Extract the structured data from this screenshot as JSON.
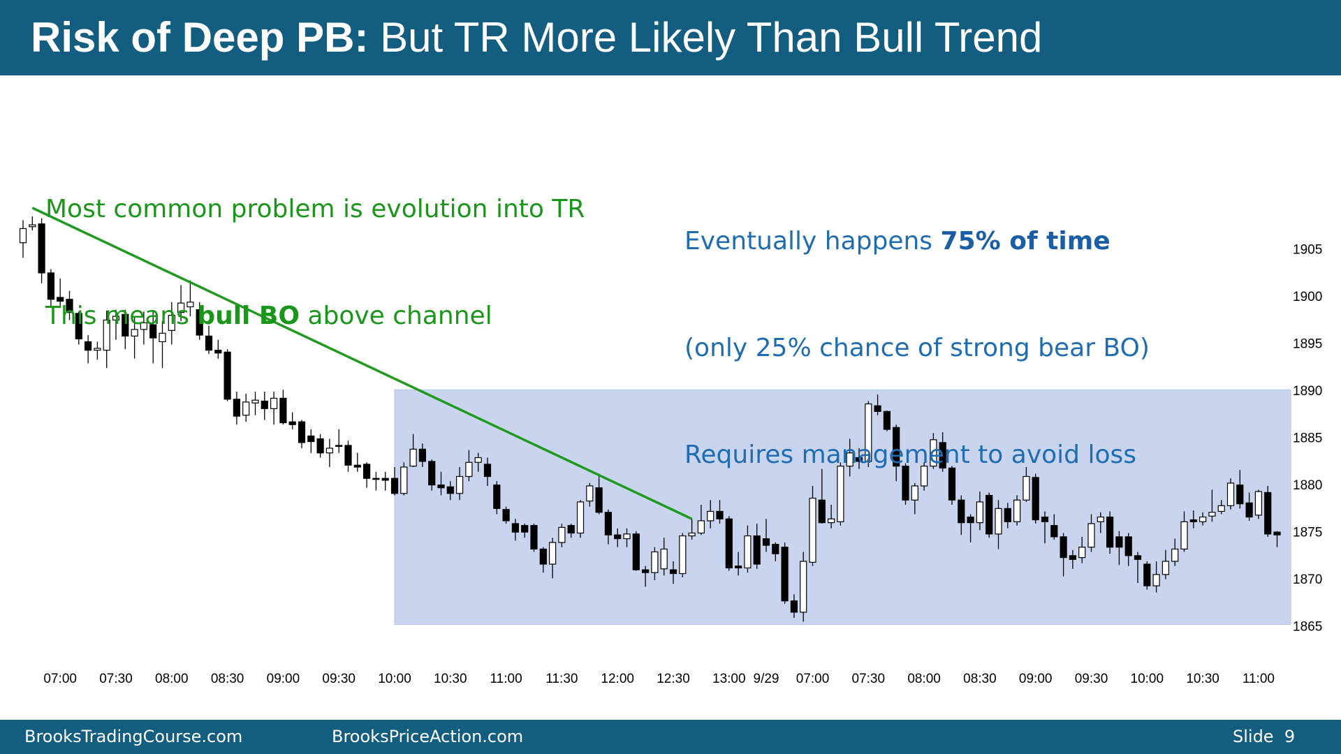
{
  "header": {
    "title_bold": "Risk of Deep PB:",
    "title": " But TR More Likely Than Bull Trend"
  },
  "footer": {
    "left": "BrooksTradingCourse.com",
    "center": "BrooksPriceAction.com",
    "right": "Slide  9"
  },
  "chart_data": {
    "type": "candlestick",
    "up_color": "#ffffff",
    "down_color": "#000000",
    "categories": [
      null,
      null,
      null,
      null,
      "07:00",
      null,
      null,
      null,
      null,
      null,
      "07:30",
      null,
      null,
      null,
      null,
      null,
      "08:00",
      null,
      null,
      null,
      null,
      null,
      "08:30",
      null,
      null,
      null,
      null,
      null,
      "09:00",
      null,
      null,
      null,
      null,
      null,
      "09:30",
      null,
      null,
      null,
      null,
      null,
      "10:00",
      null,
      null,
      null,
      null,
      null,
      "10:30",
      null,
      null,
      null,
      null,
      null,
      "11:00",
      null,
      null,
      null,
      null,
      null,
      "11:30",
      null,
      null,
      null,
      null,
      null,
      "12:00",
      null,
      null,
      null,
      null,
      null,
      "12:30",
      null,
      null,
      null,
      null,
      null,
      "13:00",
      null,
      null,
      null,
      "9/29",
      null,
      null,
      null,
      null,
      "07:00",
      null,
      null,
      null,
      null,
      null,
      "07:30",
      null,
      null,
      null,
      null,
      null,
      "08:00",
      null,
      null,
      null,
      null,
      null,
      "08:30",
      null,
      null,
      null,
      null,
      null,
      "09:00",
      null,
      null,
      null,
      null,
      null,
      "09:30",
      null,
      null,
      null,
      null,
      null,
      "10:00",
      null,
      null,
      null,
      null,
      null,
      "10:30",
      null,
      null,
      null,
      null,
      null,
      "11:00",
      null,
      null
    ],
    "open": [
      1905.8,
      1907.5,
      1907.8,
      1902.6,
      1900,
      1899.8,
      1898.3,
      1895.3,
      1894.4,
      1894.4,
      1897.6,
      1898.2,
      1895.9,
      1896.6,
      1897.1,
      1895.3,
      1896.5,
      1898.4,
      1899,
      1898.7,
      1895.9,
      1894.4,
      1894.2,
      1889.2,
      1887.5,
      1888.8,
      1889,
      1888.2,
      1889.3,
      1886.8,
      1886.8,
      1885.3,
      1885,
      1883.5,
      1884.3,
      1884.3,
      1882.2,
      1882.3,
      1880.8,
      1880.8,
      1880.8,
      1879.2,
      1882.1,
      1883.9,
      1882.6,
      1880.1,
      1879.9,
      1879.2,
      1881,
      1882.5,
      1882.3,
      1880.1,
      1877.5,
      1876,
      1875.8,
      1875.8,
      1873.3,
      1871.7,
      1874,
      1875.8,
      1875,
      1878.4,
      1879.8,
      1877.2,
      1874.8,
      1874.4,
      1874.9,
      1871.1,
      1870.8,
      1871.2,
      1871.1,
      1870.7,
      1874.7,
      1875,
      1876.3,
      1877.3,
      1876.5,
      1871.5,
      1871.3,
      1874.7,
      1874.4,
      1873.8,
      1873.5,
      1867.8,
      1866.6,
      1871.9,
      1878.5,
      1876.1,
      1876.2,
      1882.1,
      1883,
      1882.6,
      1888.5,
      1887.9,
      1886.2,
      1882.1,
      1878.5,
      1880,
      1882.1,
      1884.6,
      1881.9,
      1878.5,
      1876.7,
      1876.1,
      1879,
      1874.9,
      1877.6,
      1876.2,
      1878.5,
      1880.9,
      1876.7,
      1875.8,
      1874.6,
      1872.6,
      1872.4,
      1873.5,
      1876.2,
      1876.7,
      1874.6,
      1874.6,
      1872.6,
      1871.7,
      1869.4,
      1870.6,
      1872,
      1873.3,
      1876.4,
      1876.2,
      1876.8,
      1877.3,
      1877.9,
      1880.1,
      1878.2,
      1876.9,
      1879.3,
      1875.1
    ],
    "high": [
      1908.2,
      1908.6,
      1908.4,
      1903,
      1902,
      1900.7,
      1898.5,
      1896,
      1895.3,
      1898.6,
      1898.7,
      1898.7,
      1898,
      1898.5,
      1898.5,
      1897.5,
      1899.5,
      1901.3,
      1901.8,
      1899.5,
      1897,
      1895.5,
      1894.5,
      1890,
      1889.8,
      1890,
      1890,
      1890,
      1890.2,
      1887.8,
      1887,
      1886,
      1885.5,
      1885,
      1886,
      1884.8,
      1883.5,
      1882.5,
      1881.5,
      1881.5,
      1882,
      1882.5,
      1885.5,
      1884.5,
      1882.8,
      1881.5,
      1880.5,
      1882,
      1883.8,
      1883.5,
      1883,
      1880.5,
      1877.8,
      1876.5,
      1876,
      1876,
      1873.5,
      1874.5,
      1876,
      1876,
      1878.5,
      1880.3,
      1881.3,
      1877.5,
      1875.5,
      1875.5,
      1875.2,
      1871.5,
      1873.5,
      1874.5,
      1872,
      1875,
      1876.5,
      1878,
      1878.5,
      1878.5,
      1876.8,
      1873,
      1875.8,
      1876,
      1876.5,
      1874,
      1874,
      1868.5,
      1873,
      1880,
      1881.8,
      1878,
      1882.5,
      1885,
      1884,
      1889,
      1889.7,
      1888,
      1886.5,
      1882.4,
      1880.3,
      1882.5,
      1885.6,
      1885.7,
      1882.1,
      1879,
      1877,
      1879.4,
      1879.3,
      1878.5,
      1878.2,
      1879,
      1882,
      1881.3,
      1877.3,
      1877,
      1875,
      1873.2,
      1874.6,
      1877,
      1877.2,
      1877.3,
      1875.2,
      1875,
      1873,
      1872,
      1872,
      1873.2,
      1874.4,
      1877.3,
      1877.4,
      1877.2,
      1879.6,
      1878.5,
      1880.8,
      1881.7,
      1879.3,
      1879.6,
      1880,
      1875.2
    ],
    "low": [
      1904.2,
      1907.1,
      1901.5,
      1899,
      1899,
      1897.6,
      1895,
      1893,
      1893.4,
      1892.5,
      1895.5,
      1894.5,
      1893.5,
      1895,
      1893,
      1892.5,
      1895,
      1897.5,
      1898,
      1895.5,
      1894,
      1893.5,
      1889,
      1886.5,
      1886.8,
      1887.5,
      1887,
      1886.5,
      1886.5,
      1886,
      1884,
      1883.5,
      1883,
      1882,
      1883.5,
      1881.5,
      1881.5,
      1879.8,
      1879.5,
      1879.5,
      1879,
      1879,
      1882,
      1882,
      1879.5,
      1879,
      1878.5,
      1878.5,
      1880.5,
      1881.5,
      1880,
      1877,
      1876,
      1874.2,
      1874.5,
      1873,
      1870.8,
      1870.2,
      1873.5,
      1874.5,
      1874.5,
      1877.8,
      1877,
      1873.8,
      1873.5,
      1873.5,
      1871,
      1869.3,
      1870,
      1870.5,
      1869.6,
      1870.3,
      1874.3,
      1874.8,
      1875.5,
      1876,
      1871,
      1870.5,
      1870.8,
      1871.2,
      1873,
      1872,
      1867.5,
      1866,
      1865.6,
      1871.5,
      1876,
      1875.5,
      1875.8,
      1881,
      1881.8,
      1882,
      1887.5,
      1885.8,
      1880.5,
      1878,
      1877,
      1879.5,
      1881.8,
      1881.5,
      1878,
      1874.8,
      1874,
      1875.3,
      1874.5,
      1873.3,
      1875.5,
      1875.8,
      1878.3,
      1876,
      1873.9,
      1874.3,
      1870.4,
      1871.2,
      1871.8,
      1873,
      1875,
      1872.8,
      1871.6,
      1871.5,
      1869.7,
      1869,
      1868.7,
      1870.1,
      1871.5,
      1873,
      1875.5,
      1875.8,
      1876.2,
      1877,
      1877.5,
      1877.6,
      1876.3,
      1876.5,
      1874.6,
      1873.5
    ],
    "close": [
      1907.3,
      1907.7,
      1902.6,
      1899.8,
      1899.6,
      1898.4,
      1895.6,
      1894.4,
      1894.6,
      1897.6,
      1898,
      1895.9,
      1896.6,
      1897.3,
      1895.7,
      1896.2,
      1898.1,
      1899.4,
      1899.5,
      1896,
      1894.4,
      1894.1,
      1889.2,
      1887.4,
      1888.9,
      1889.1,
      1888.2,
      1889.3,
      1886.7,
      1886.5,
      1884.6,
      1884.7,
      1883.5,
      1884,
      1884.2,
      1882.2,
      1882,
      1880.8,
      1880.7,
      1880.6,
      1879.2,
      1882,
      1883.9,
      1882.6,
      1880.1,
      1879.8,
      1879.2,
      1881,
      1882.5,
      1883,
      1881,
      1877.6,
      1876.3,
      1875.1,
      1875.1,
      1873.3,
      1871.7,
      1874,
      1875.6,
      1875,
      1878.3,
      1880,
      1877.2,
      1874.8,
      1874.4,
      1874.9,
      1871.1,
      1870.8,
      1873,
      1873.3,
      1870.7,
      1874.7,
      1875,
      1876.3,
      1877.3,
      1876.5,
      1871.3,
      1871.3,
      1874.7,
      1871.7,
      1873.7,
      1872.8,
      1867.8,
      1866.6,
      1872,
      1878.7,
      1876.1,
      1876.5,
      1882.1,
      1883.5,
      1882.6,
      1888.7,
      1887.9,
      1886,
      1882.1,
      1878.5,
      1880,
      1882.1,
      1884.9,
      1881.9,
      1878.5,
      1876.1,
      1876.1,
      1878.3,
      1874.9,
      1877.6,
      1876.2,
      1878.5,
      1881,
      1876.4,
      1876.2,
      1874.6,
      1872.4,
      1872.2,
      1873.5,
      1876,
      1876.7,
      1873.5,
      1873.5,
      1872.6,
      1872.2,
      1869.4,
      1870.6,
      1872,
      1873.3,
      1876.2,
      1876.2,
      1876.7,
      1877.2,
      1877.9,
      1880.3,
      1878.1,
      1876.7,
      1879.4,
      1874.9,
      1874.8
    ],
    "ylim": [
      1862,
      1910
    ],
    "yticks": [
      1865,
      1870,
      1875,
      1880,
      1885,
      1890,
      1895,
      1900,
      1905
    ],
    "range_box": {
      "color": "#c9d5ef",
      "start": 40,
      "low": 1865.3,
      "high": 1890.2
    },
    "trend_line": {
      "color": "#1f9a1f",
      "points": [
        [
          1,
          1909.5
        ],
        [
          72,
          1876.5
        ]
      ]
    },
    "annotations": {
      "green": [
        [
          "Most common problem is evolution into TR"
        ],
        [
          "This means ",
          "bull BO",
          " above channel"
        ]
      ],
      "blue": [
        [
          "Eventually happens ",
          "75% of time"
        ],
        [
          "(only 25% chance of strong bear BO)"
        ],
        [
          "Requires management to avoid loss"
        ]
      ]
    }
  }
}
